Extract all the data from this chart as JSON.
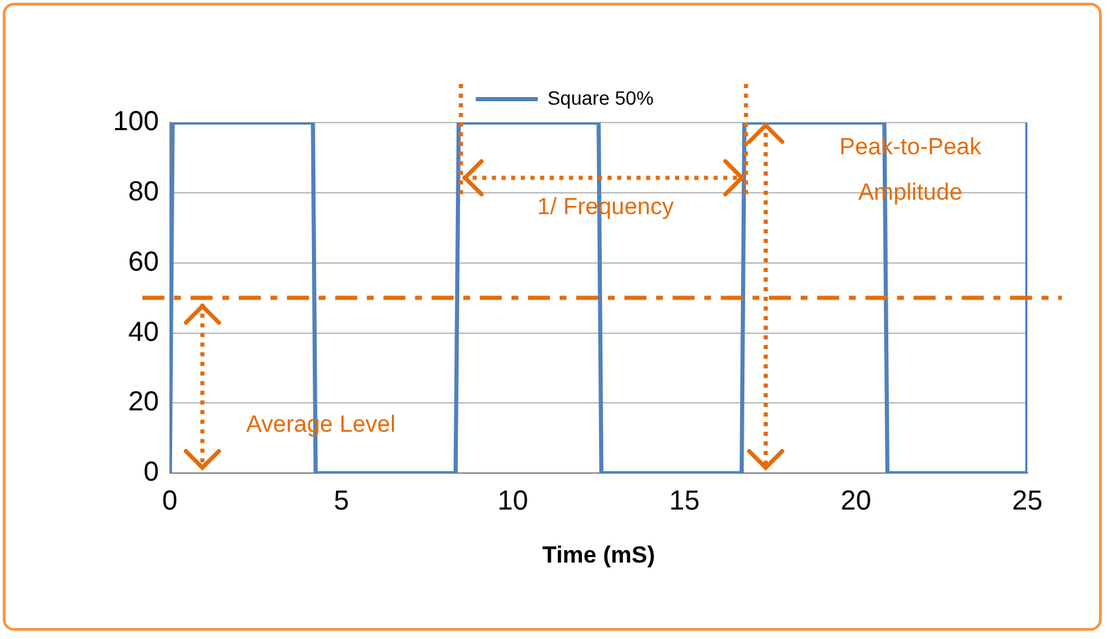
{
  "chart_data": {
    "type": "line",
    "xlabel": "Time (mS)",
    "legend": "top",
    "series": [
      {
        "name": "Square 50%",
        "color": "#4f81bd",
        "x": [
          0,
          0.08,
          4.17,
          4.25,
          8.33,
          8.42,
          12.5,
          12.58,
          16.67,
          16.75,
          20.83,
          20.92,
          25,
          25
        ],
        "values": [
          0,
          100,
          100,
          0,
          0,
          100,
          100,
          0,
          0,
          100,
          100,
          0,
          0,
          100
        ]
      }
    ],
    "xlim": [
      0,
      25
    ],
    "xticks": [
      0,
      5,
      10,
      15,
      20,
      25
    ],
    "ylim": [
      0,
      100
    ],
    "yticks": [
      0,
      20,
      40,
      60,
      80,
      100
    ],
    "grid": "y",
    "marker": "none",
    "line_style": "solid",
    "ref_lines": [
      {
        "axis": "y",
        "value": 50,
        "label": null,
        "color": "#e46c0a",
        "line_style": "dashed"
      }
    ],
    "annotations": [
      {
        "text": "1/ Frequency",
        "x": 12.7,
        "y": 76
      },
      "Peak-to-Peak Amplitude",
      {
        "text": "Average Level",
        "x": 4.4,
        "y": 14
      }
    ]
  }
}
